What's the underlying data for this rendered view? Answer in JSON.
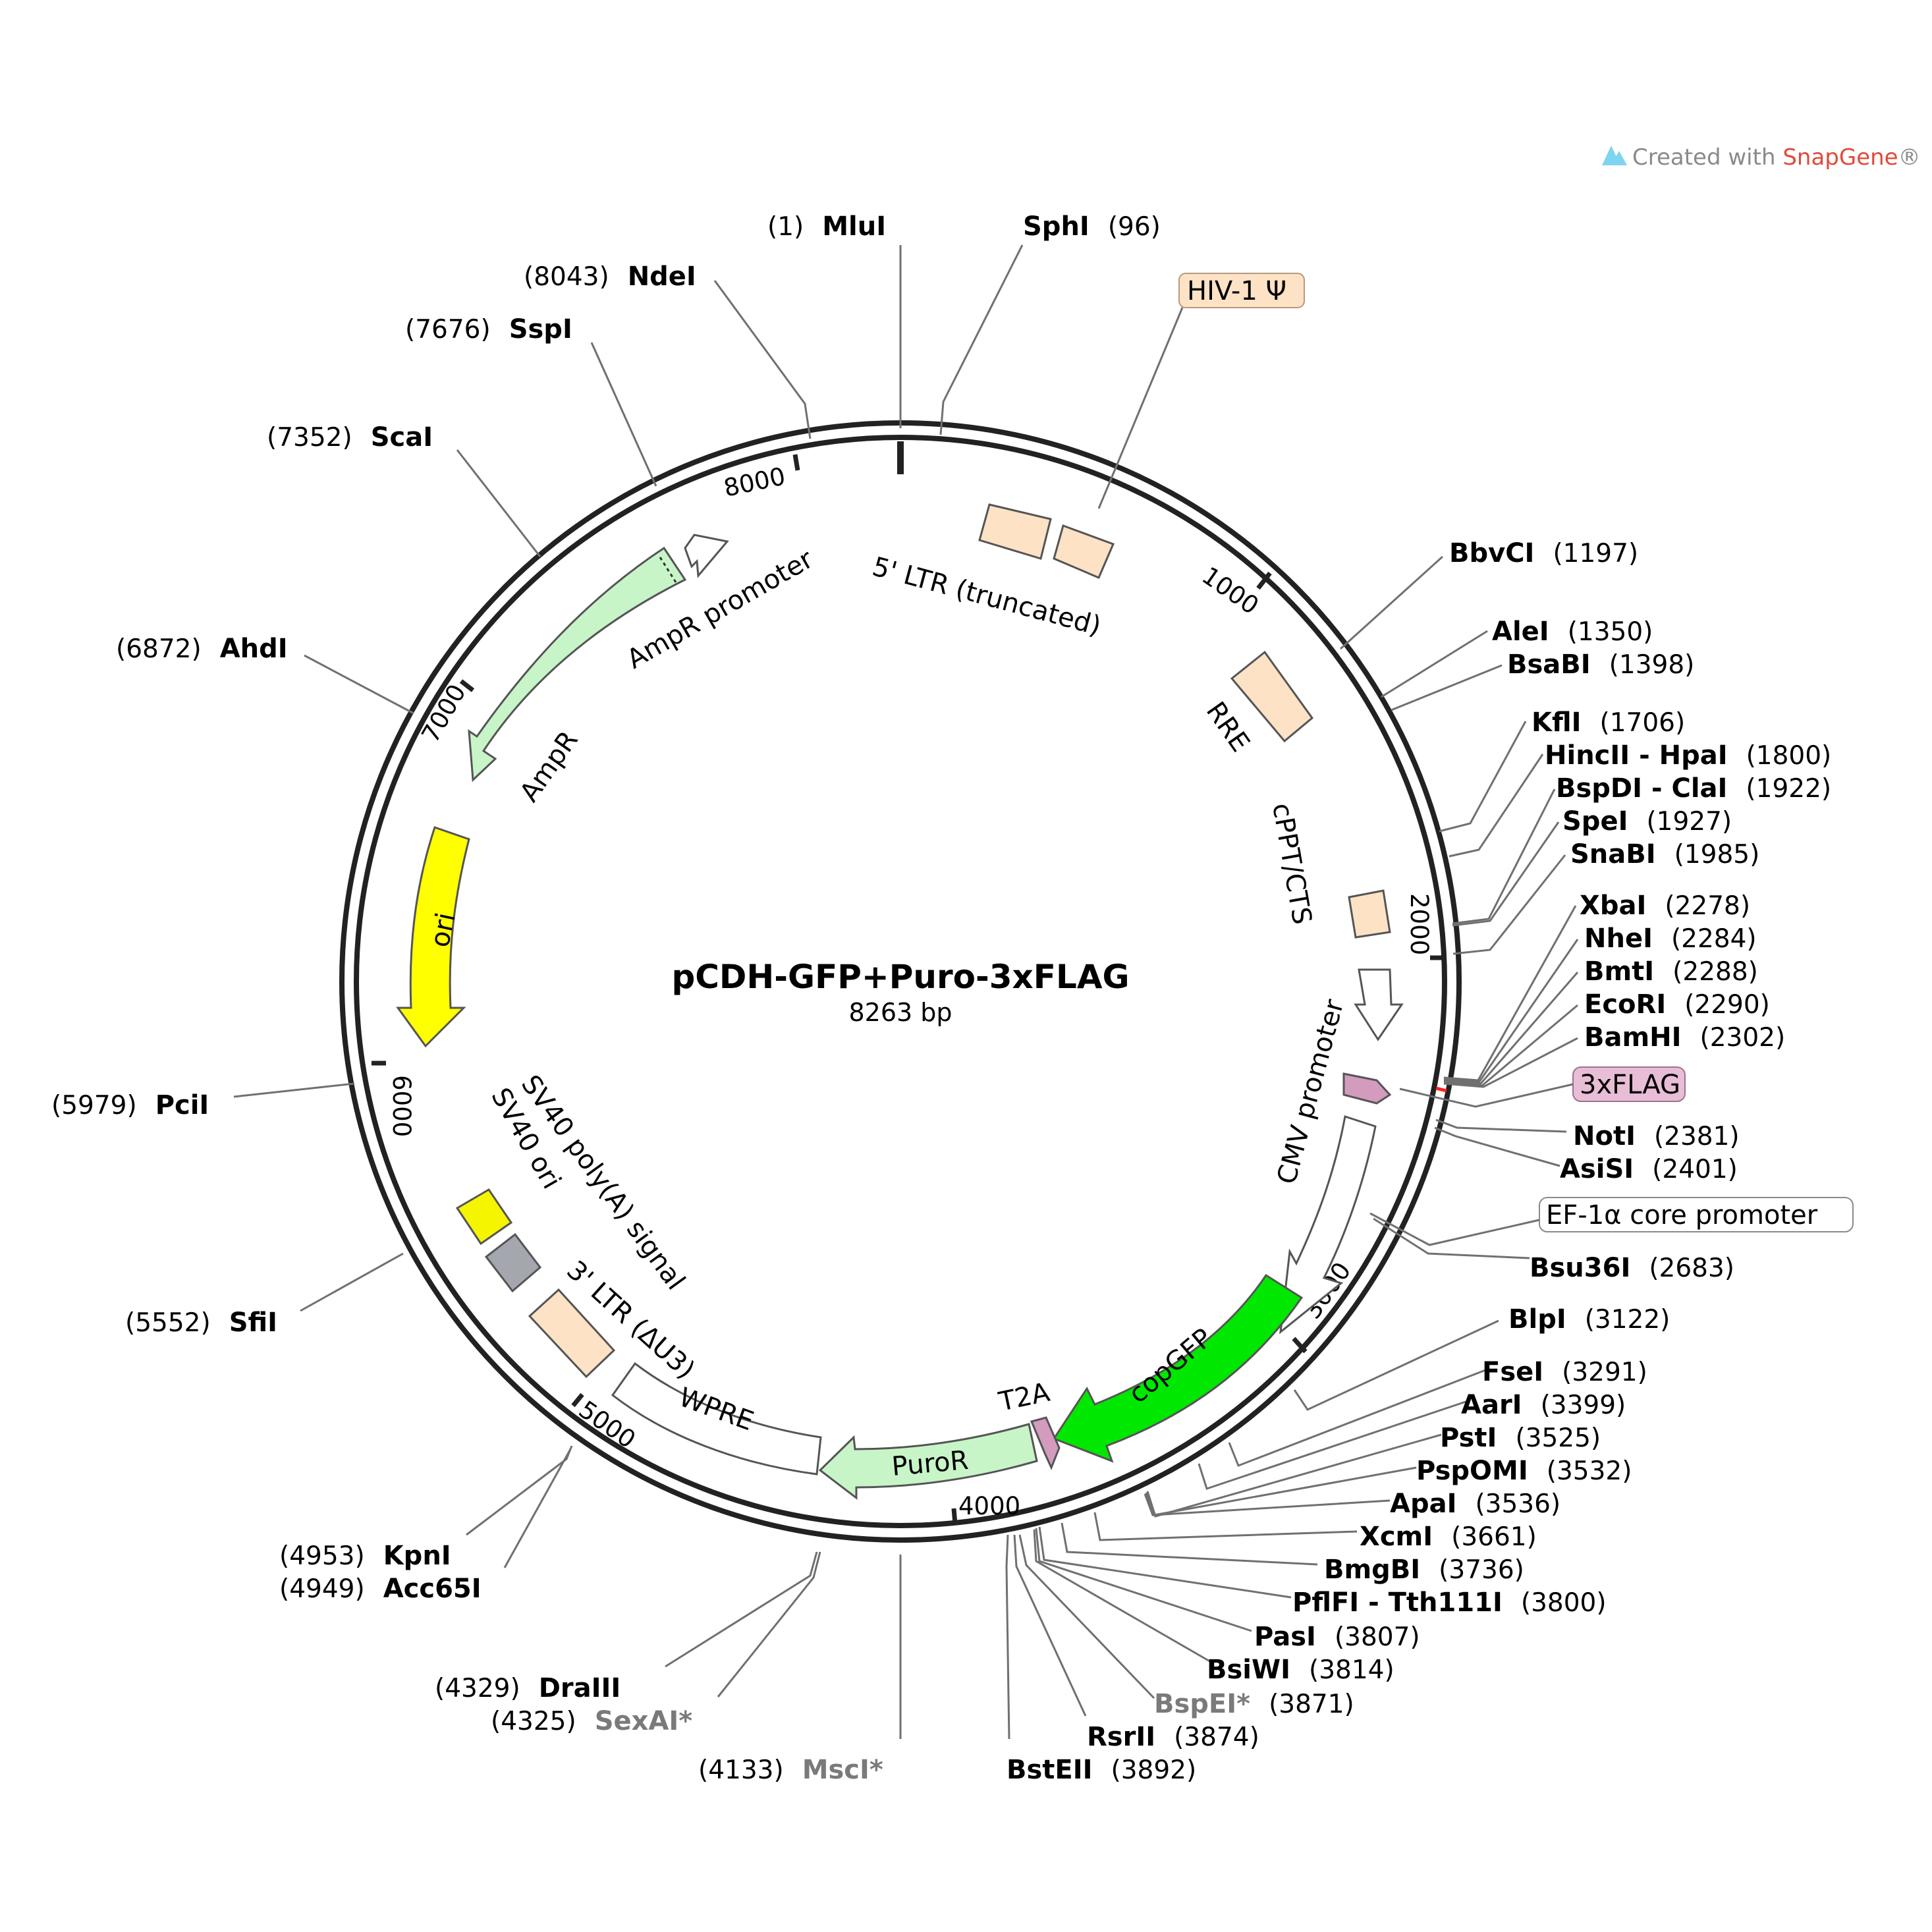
{
  "plasmid": {
    "name": "pCDH-GFP+Puro-3xFLAG",
    "size": "8263 bp",
    "total_bp": 8263
  },
  "credit": {
    "prefix": "Created with ",
    "brand": "SnapGene",
    "mark": "®"
  },
  "ticks": [
    "1000",
    "2000",
    "3000",
    "4000",
    "5000",
    "6000",
    "7000",
    "8000"
  ],
  "features": [
    {
      "name": "5' LTR (truncated)",
      "color": "#fde2c5"
    },
    {
      "name": "HIV-1 Ψ",
      "color": "#fde2c5"
    },
    {
      "name": "RRE",
      "color": "#fde2c5"
    },
    {
      "name": "cPPT/CTS",
      "color": "#fde2c5"
    },
    {
      "name": "CMV promoter",
      "color": "#ffffff"
    },
    {
      "name": "3xFLAG",
      "color": "#d39bbd"
    },
    {
      "name": "EF-1α core promoter",
      "color": "#ffffff"
    },
    {
      "name": "copGFP",
      "color": "#00e800"
    },
    {
      "name": "T2A",
      "color": "#d39bbd"
    },
    {
      "name": "PuroR",
      "color": "#c8f5c8"
    },
    {
      "name": "WPRE",
      "color": "#ffffff"
    },
    {
      "name": "3' LTR (ΔU3)",
      "color": "#fde2c5"
    },
    {
      "name": "SV40 ori",
      "color": "#a4a7ad"
    },
    {
      "name": "SV40 poly(A) signal",
      "color": "#f5f500"
    },
    {
      "name": "ori",
      "color": "#ffff00"
    },
    {
      "name": "AmpR",
      "color": "#c8f5c8"
    },
    {
      "name": "AmpR promoter",
      "color": "#ffffff"
    }
  ],
  "sites": [
    {
      "enzyme": "MluI",
      "pos": "(1)"
    },
    {
      "enzyme": "SphI",
      "pos": "(96)"
    },
    {
      "enzyme": "BbvCI",
      "pos": "(1197)"
    },
    {
      "enzyme": "AleI",
      "pos": "(1350)"
    },
    {
      "enzyme": "BsaBI",
      "pos": "(1398)"
    },
    {
      "enzyme": "KflI",
      "pos": "(1706)"
    },
    {
      "enzyme": "HincII - HpaI",
      "pos": "(1800)"
    },
    {
      "enzyme": "BspDI - ClaI",
      "pos": "(1922)"
    },
    {
      "enzyme": "SpeI",
      "pos": "(1927)"
    },
    {
      "enzyme": "SnaBI",
      "pos": "(1985)"
    },
    {
      "enzyme": "XbaI",
      "pos": "(2278)"
    },
    {
      "enzyme": "NheI",
      "pos": "(2284)"
    },
    {
      "enzyme": "BmtI",
      "pos": "(2288)"
    },
    {
      "enzyme": "EcoRI",
      "pos": "(2290)"
    },
    {
      "enzyme": "BamHI",
      "pos": "(2302)"
    },
    {
      "enzyme": "NotI",
      "pos": "(2381)"
    },
    {
      "enzyme": "AsiSI",
      "pos": "(2401)"
    },
    {
      "enzyme": "Bsu36I",
      "pos": "(2683)"
    },
    {
      "enzyme": "BlpI",
      "pos": "(3122)"
    },
    {
      "enzyme": "FseI",
      "pos": "(3291)"
    },
    {
      "enzyme": "AarI",
      "pos": "(3399)"
    },
    {
      "enzyme": "PstI",
      "pos": "(3525)"
    },
    {
      "enzyme": "PspOMI",
      "pos": "(3532)"
    },
    {
      "enzyme": "ApaI",
      "pos": "(3536)"
    },
    {
      "enzyme": "XcmI",
      "pos": "(3661)"
    },
    {
      "enzyme": "BmgBI",
      "pos": "(3736)"
    },
    {
      "enzyme": "PflFI - Tth111I",
      "pos": "(3800)"
    },
    {
      "enzyme": "PasI",
      "pos": "(3807)"
    },
    {
      "enzyme": "BsiWI",
      "pos": "(3814)"
    },
    {
      "enzyme": "BspEI*",
      "pos": "(3871)"
    },
    {
      "enzyme": "RsrII",
      "pos": "(3874)"
    },
    {
      "enzyme": "BstEII",
      "pos": "(3892)"
    },
    {
      "enzyme": "MscI*",
      "pos": "(4133)"
    },
    {
      "enzyme": "DraIII",
      "pos": "(4329)"
    },
    {
      "enzyme": "SexAI*",
      "pos": "(4325)"
    },
    {
      "enzyme": "KpnI",
      "pos": "(4953)"
    },
    {
      "enzyme": "Acc65I",
      "pos": "(4949)"
    },
    {
      "enzyme": "SfiI",
      "pos": "(5552)"
    },
    {
      "enzyme": "PciI",
      "pos": "(5979)"
    },
    {
      "enzyme": "AhdI",
      "pos": "(6872)"
    },
    {
      "enzyme": "ScaI",
      "pos": "(7352)"
    },
    {
      "enzyme": "SspI",
      "pos": "(7676)"
    },
    {
      "enzyme": "NdeI",
      "pos": "(8043)"
    }
  ]
}
